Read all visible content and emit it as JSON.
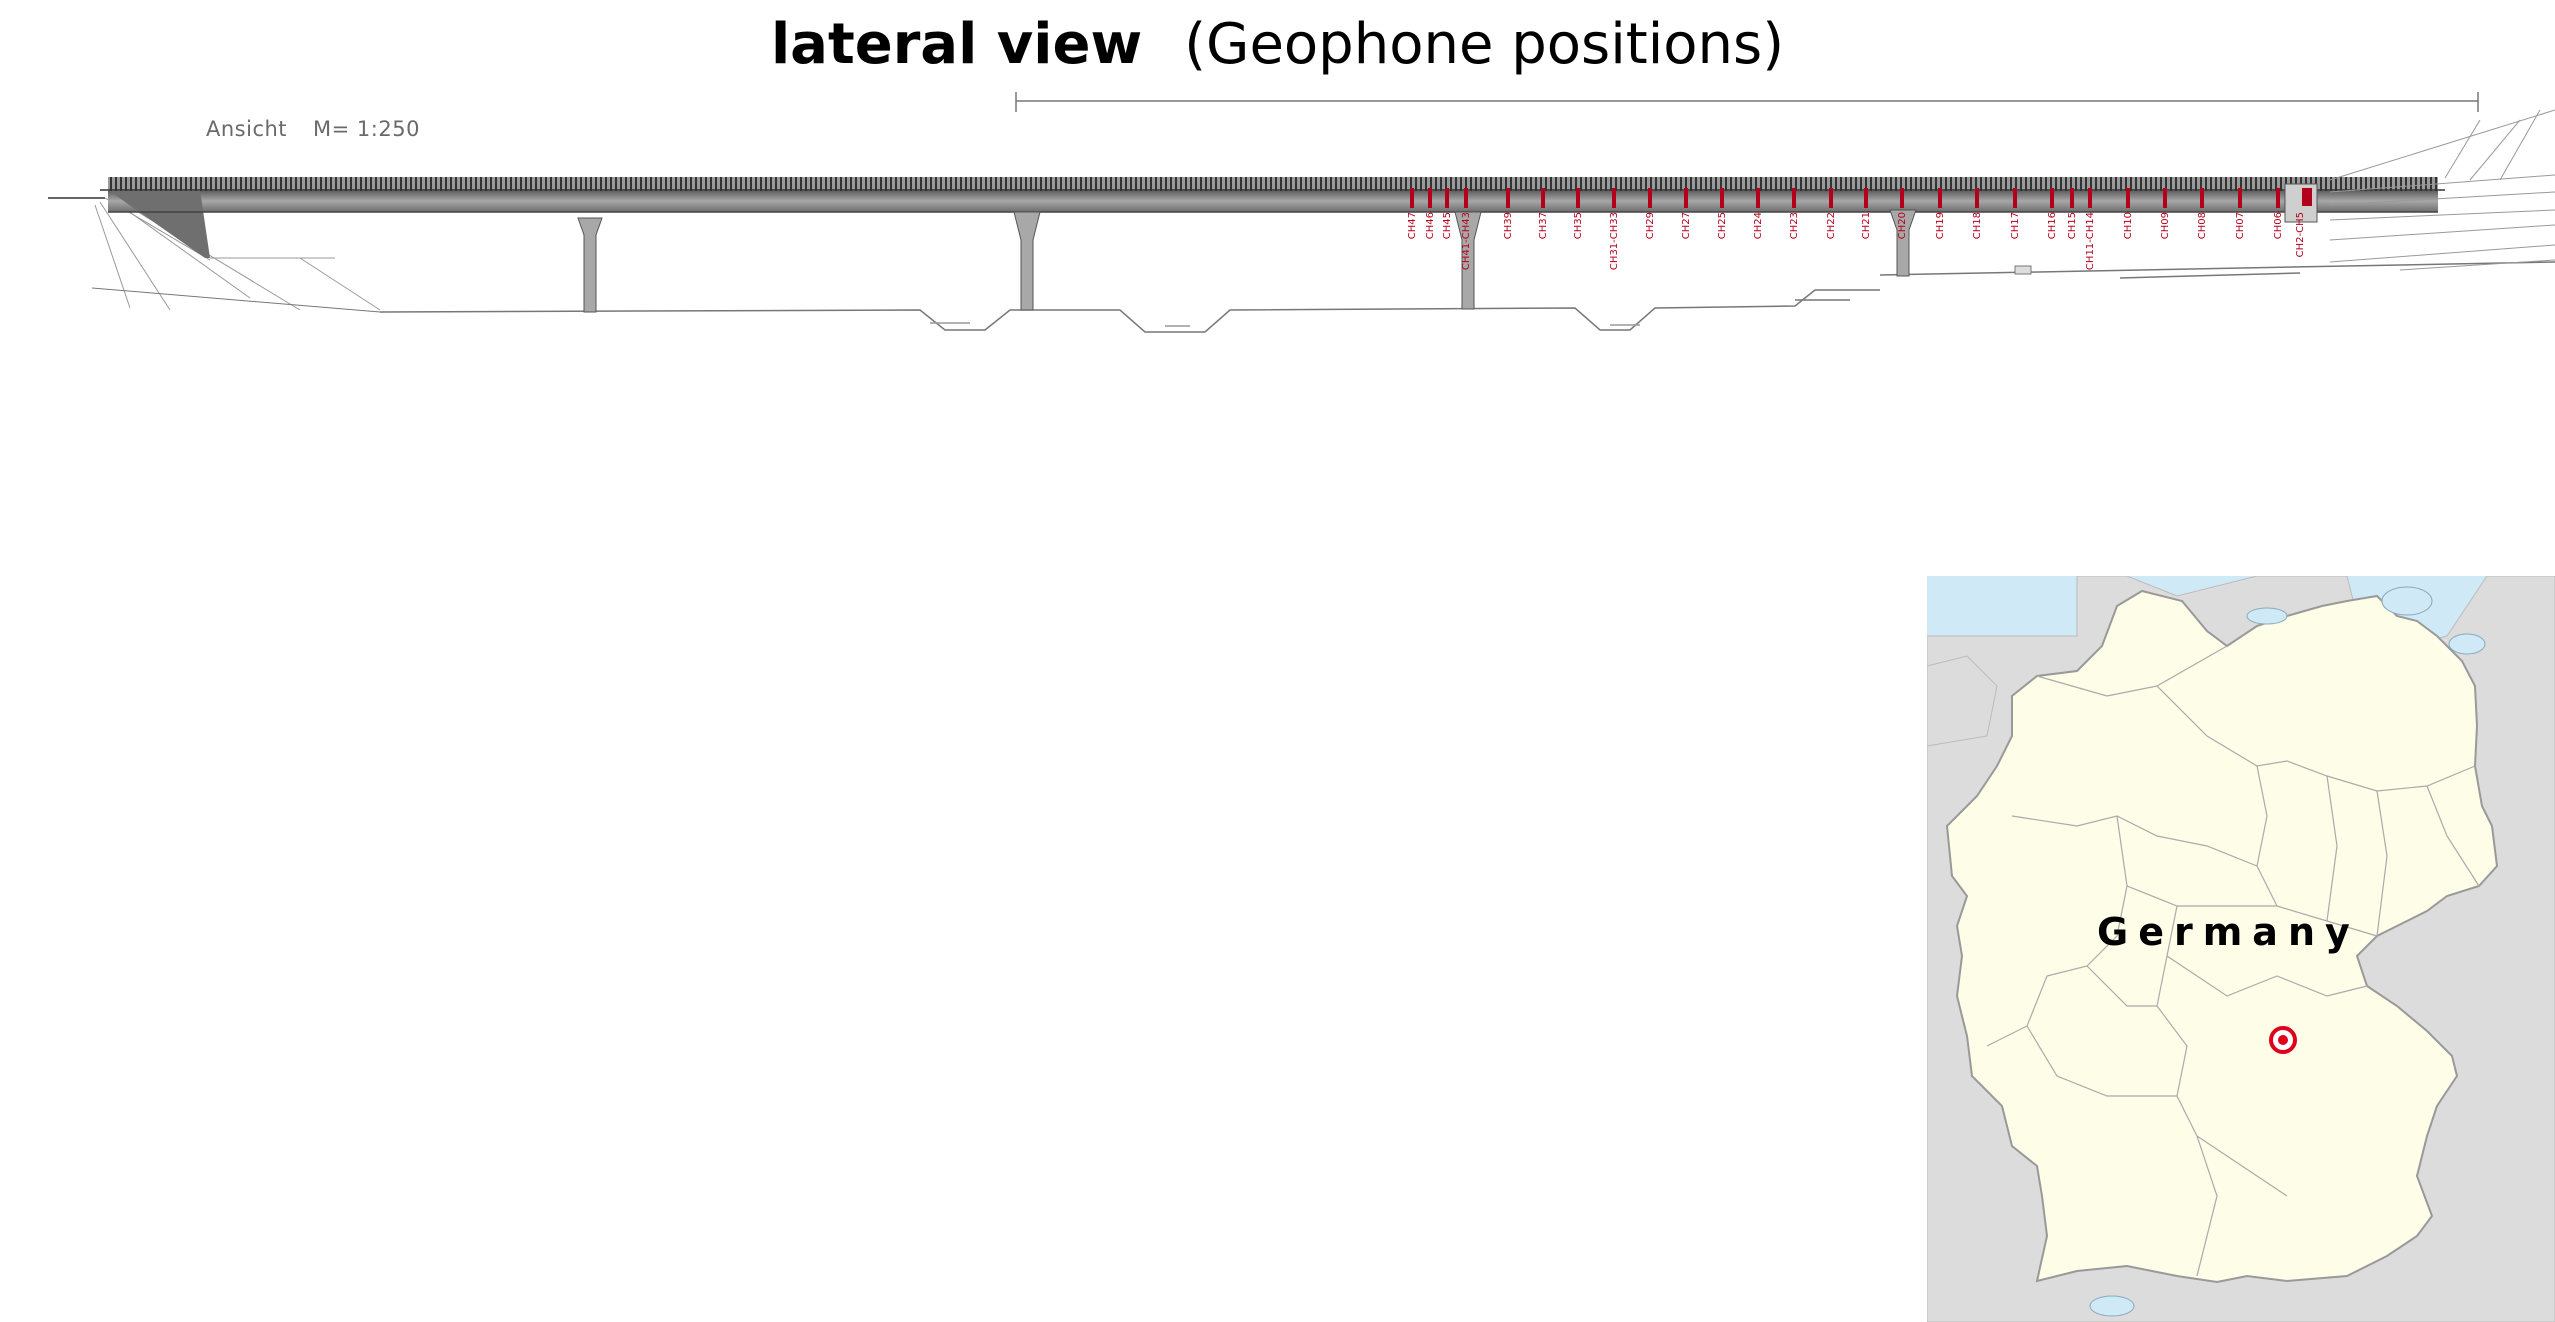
{
  "title": {
    "bold": "lateral view",
    "rest": "(Geophone positions)"
  },
  "drawing": {
    "view_label": "Ansicht",
    "scale_label": "M= 1:250",
    "channels": [
      "CH47",
      "CH46",
      "CH45",
      "CH41-CH43",
      "CH39",
      "CH37",
      "CH35",
      "CH31-CH33",
      "CH29",
      "CH27",
      "CH25",
      "CH24",
      "CH23",
      "CH22",
      "CH21",
      "CH20",
      "CH19",
      "CH18",
      "CH17",
      "CH16",
      "CH15",
      "CH11-CH14",
      "CH10",
      "CH09",
      "CH08",
      "CH07",
      "CH06",
      "CH2-CH5"
    ],
    "marker_color": "#b3001b"
  },
  "map": {
    "country_label": "Germany",
    "location_marker_color": "#e0001b"
  }
}
